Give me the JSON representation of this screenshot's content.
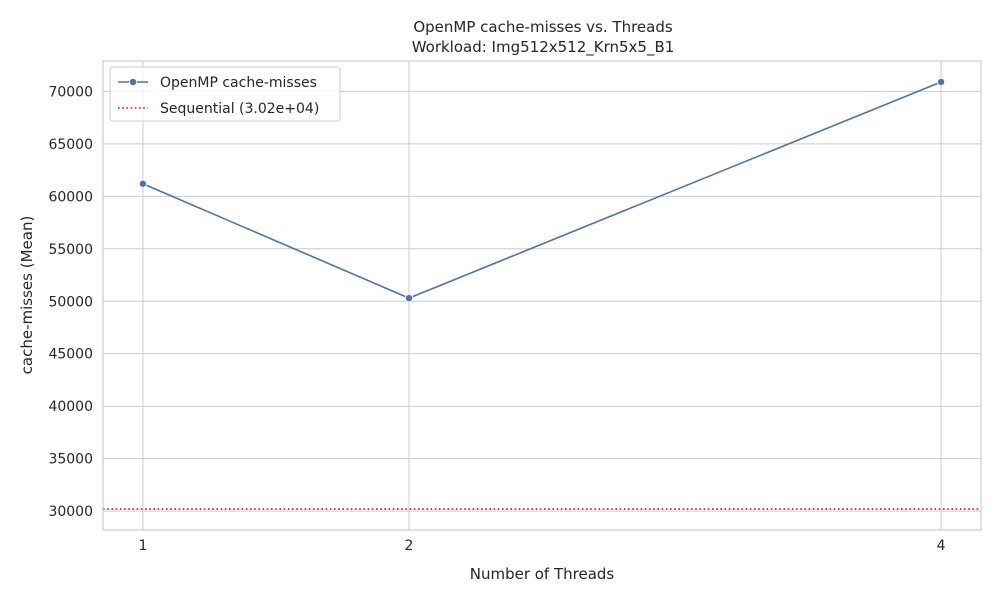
{
  "chart_data": {
    "type": "line",
    "title": "OpenMP cache-misses vs. Threads",
    "subtitle": "Workload: Img512x512_Krn5x5_B1",
    "xlabel": "Number of Threads",
    "ylabel": "cache-misses (Mean)",
    "x": [
      1,
      2,
      4
    ],
    "x_ticks": [
      "1",
      "2",
      "4"
    ],
    "xlim": [
      0.85,
      4.15
    ],
    "ylim": [
      28200,
      72900
    ],
    "y_ticks": [
      30000,
      35000,
      40000,
      45000,
      50000,
      55000,
      60000,
      65000,
      70000
    ],
    "grid": true,
    "legend_position": "top-left",
    "series": [
      {
        "name": "OpenMP cache-misses",
        "values": [
          61200,
          50300,
          70900
        ],
        "color": "#4c72b0",
        "marker": "circle"
      }
    ],
    "reference_lines": [
      {
        "name": "Sequential (3.02e+04)",
        "value": 30200,
        "color": "#ff0000",
        "style": "dotted"
      }
    ]
  }
}
